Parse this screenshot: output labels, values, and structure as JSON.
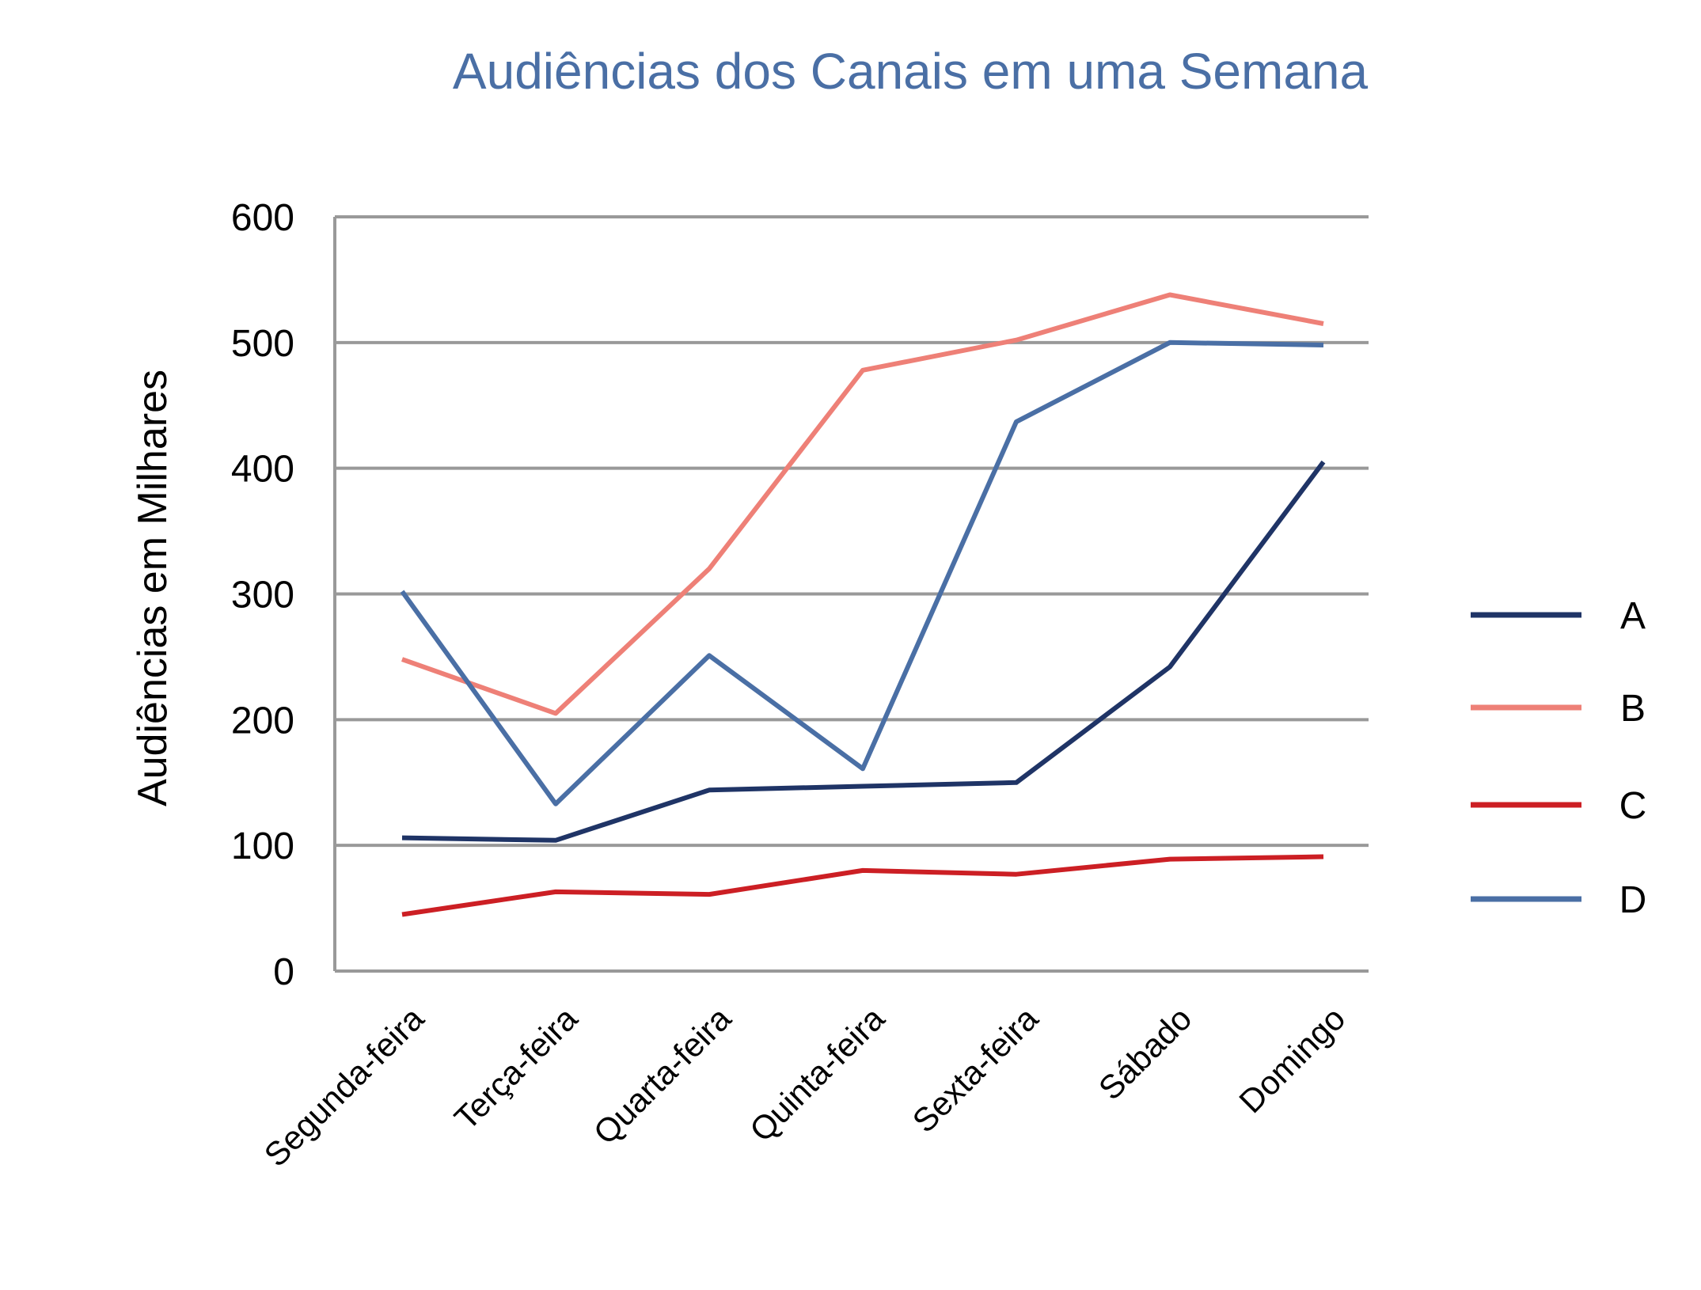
{
  "chart_data": {
    "type": "line",
    "title": "Audiências dos Canais em uma Semana",
    "xlabel": "",
    "ylabel": "Audiências em Milhares",
    "ylim": [
      0,
      600
    ],
    "yticks": [
      "0",
      "100",
      "200",
      "300",
      "400",
      "500",
      "600"
    ],
    "ytick_values": [
      0,
      100,
      200,
      300,
      400,
      500,
      600
    ],
    "categories": [
      "Segunda-feira",
      "Terça-feira",
      "Quarta-feira",
      "Quinta-feira",
      "Sexta-feira",
      "Sábado",
      "Domingo"
    ],
    "grid": true,
    "legend_position": "right",
    "series": [
      {
        "name": "A",
        "color": "#1f3466",
        "values": [
          106,
          104,
          144,
          147,
          150,
          242,
          405
        ]
      },
      {
        "name": "B",
        "color": "#ee8077",
        "values": [
          248,
          205,
          320,
          478,
          502,
          538,
          515
        ]
      },
      {
        "name": "C",
        "color": "#cc1f24",
        "values": [
          45,
          63,
          61,
          80,
          77,
          89,
          91
        ]
      },
      {
        "name": "D",
        "color": "#4a6fa5",
        "values": [
          302,
          133,
          251,
          161,
          437,
          500,
          498
        ]
      }
    ]
  }
}
